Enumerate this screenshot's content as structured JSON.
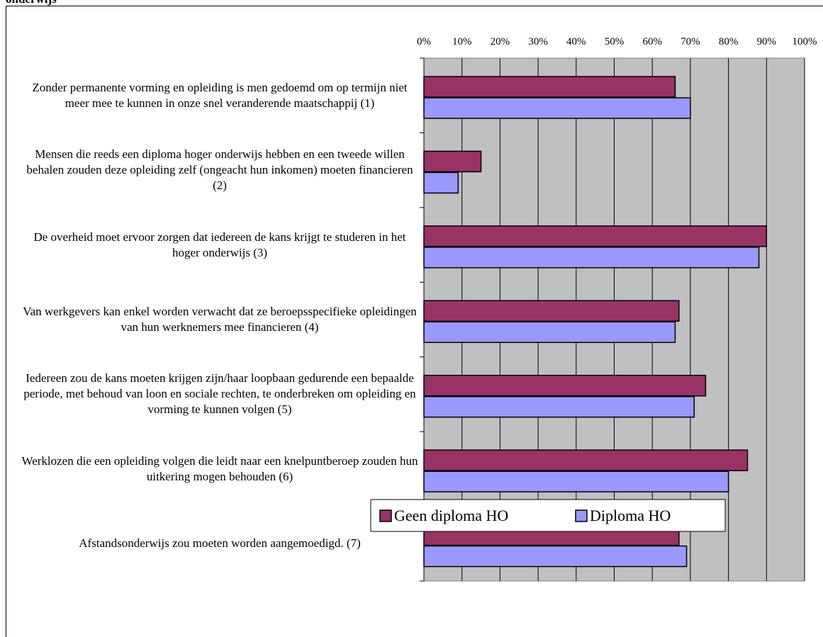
{
  "chart_data": {
    "type": "hbar",
    "title": "onderwijs",
    "categories": [
      "Zonder permanente vorming en opleiding is men gedoemd om op termijn niet meer mee te kunnen in onze snel veranderende maatschappij (1)",
      "Mensen die reeds een diploma hoger onderwijs hebben en een tweede willen behalen zouden deze opleiding zelf (ongeacht hun inkomen) moeten financieren (2)",
      "De overheid moet ervoor zorgen dat iedereen de kans krijgt te studeren in het hoger onderwijs (3)",
      "Van werkgevers kan enkel worden verwacht dat ze beroepsspecifieke opleidingen van hun werknemers mee financieren (4)",
      "Iedereen zou de kans moeten krijgen zijn/haar loopbaan gedurende een bepaalde periode, met behoud van loon en sociale rechten, te onderbreken om opleiding en vorming te kunnen volgen (5)",
      "Werklozen die een opleiding volgen die leidt naar een knelpuntberoep zouden hun uitkering mogen behouden (6)",
      "Afstandsonderwijs zou moeten worden aangemoedigd. (7)"
    ],
    "series": [
      {
        "name": "Geen diploma HO",
        "color": "#993366",
        "values": [
          66,
          15,
          90,
          67,
          74,
          85,
          67
        ]
      },
      {
        "name": "Diploma HO",
        "color": "#9999ff",
        "values": [
          70,
          9,
          88,
          66,
          71,
          80,
          69
        ]
      }
    ],
    "xlim": [
      0,
      100
    ],
    "xticks": [
      {
        "value": 0,
        "label": "0%"
      },
      {
        "value": 10,
        "label": "10%"
      },
      {
        "value": 20,
        "label": "20%"
      },
      {
        "value": 30,
        "label": "30%"
      },
      {
        "value": 40,
        "label": "40%"
      },
      {
        "value": 50,
        "label": "50%"
      },
      {
        "value": 60,
        "label": "60%"
      },
      {
        "value": 70,
        "label": "70%"
      },
      {
        "value": 80,
        "label": "80%"
      },
      {
        "value": 90,
        "label": "90%"
      },
      {
        "value": 100,
        "label": "100%"
      }
    ],
    "grid": true,
    "legend": "bottom"
  }
}
